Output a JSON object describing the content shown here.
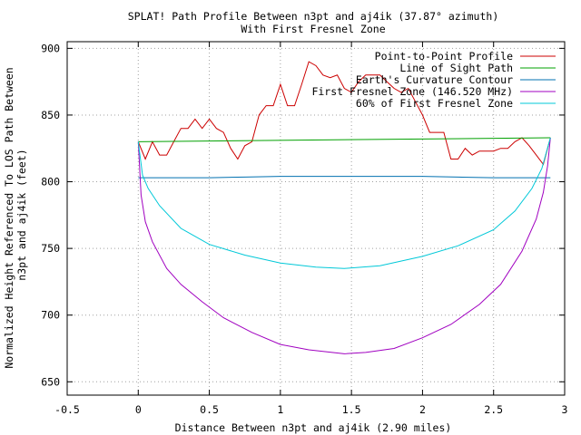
{
  "chart_data": {
    "type": "line",
    "title": "SPLAT! Path Profile Between n3pt and aj4ik (37.87° azimuth)",
    "subtitle": "With First Fresnel Zone",
    "xlabel": "Distance Between n3pt and aj4ik (2.90 miles)",
    "ylabel_lines": [
      "Normalized Height Referenced To LOS Path Between",
      "n3pt and aj4ik (feet)"
    ],
    "xlim": [
      -0.5,
      3
    ],
    "ylim": [
      640,
      905
    ],
    "x_ticks": [
      -0.5,
      0,
      0.5,
      1,
      1.5,
      2,
      2.5,
      3
    ],
    "x_tick_labels": [
      "-0.5",
      "0",
      "0.5",
      "1",
      "1.5",
      "2",
      "2.5",
      "3"
    ],
    "y_ticks": [
      650,
      700,
      750,
      800,
      850,
      900
    ],
    "y_tick_labels": [
      "650",
      "700",
      "750",
      "800",
      "850",
      "900"
    ],
    "grid": true,
    "legend_position": "top-right",
    "series": [
      {
        "name": "Point-to-Point Profile",
        "color": "#cc0000",
        "x": [
          0.0,
          0.05,
          0.1,
          0.15,
          0.2,
          0.25,
          0.3,
          0.35,
          0.4,
          0.45,
          0.5,
          0.55,
          0.6,
          0.65,
          0.7,
          0.75,
          0.8,
          0.85,
          0.9,
          0.95,
          1.0,
          1.05,
          1.1,
          1.15,
          1.2,
          1.25,
          1.3,
          1.35,
          1.4,
          1.45,
          1.5,
          1.55,
          1.6,
          1.65,
          1.7,
          1.75,
          1.8,
          1.85,
          1.9,
          1.95,
          2.0,
          2.05,
          2.1,
          2.15,
          2.2,
          2.25,
          2.3,
          2.35,
          2.4,
          2.45,
          2.5,
          2.55,
          2.6,
          2.65,
          2.7,
          2.75,
          2.8,
          2.85,
          2.9
        ],
        "y": [
          830,
          817,
          830,
          820,
          820,
          830,
          840,
          840,
          847,
          840,
          847,
          840,
          837,
          825,
          817,
          827,
          830,
          850,
          857,
          857,
          873,
          857,
          857,
          873,
          890,
          887,
          880,
          878,
          880,
          870,
          867,
          875,
          880,
          880,
          880,
          875,
          870,
          867,
          870,
          860,
          850,
          837,
          837,
          837,
          817,
          817,
          825,
          820,
          823,
          823,
          823,
          825,
          825,
          830,
          833,
          827,
          820,
          813,
          833
        ]
      },
      {
        "name": "Line of Sight Path",
        "color": "#00a000",
        "x": [
          0.0,
          2.9
        ],
        "y": [
          830,
          833
        ]
      },
      {
        "name": "Earth's Curvature Contour",
        "color": "#0070b0",
        "x": [
          0.0,
          0.25,
          0.5,
          0.75,
          1.0,
          1.25,
          1.5,
          1.75,
          2.0,
          2.25,
          2.5,
          2.75,
          2.9
        ],
        "y": [
          803,
          803,
          803,
          803.5,
          804,
          804,
          804,
          804,
          804,
          803.5,
          803,
          803,
          803
        ]
      },
      {
        "name": "First Fresnel Zone (146.520 MHz)",
        "color": "#a000c0",
        "x": [
          0.0,
          0.02,
          0.05,
          0.1,
          0.2,
          0.3,
          0.45,
          0.6,
          0.8,
          1.0,
          1.2,
          1.45,
          1.6,
          1.8,
          2.0,
          2.2,
          2.4,
          2.55,
          2.7,
          2.8,
          2.85,
          2.88,
          2.9
        ],
        "y": [
          830,
          790,
          770,
          755,
          735,
          723,
          710,
          698,
          687,
          678,
          674,
          671,
          672,
          675,
          683,
          693,
          708,
          723,
          748,
          772,
          792,
          812,
          833
        ]
      },
      {
        "name": "60% of First Fresnel Zone",
        "color": "#00c8d8",
        "x": [
          0.0,
          0.03,
          0.07,
          0.15,
          0.3,
          0.5,
          0.75,
          1.0,
          1.25,
          1.45,
          1.7,
          2.0,
          2.25,
          2.5,
          2.65,
          2.77,
          2.84,
          2.9
        ],
        "y": [
          830,
          805,
          795,
          782,
          765,
          753,
          745,
          739,
          736,
          735,
          737,
          744,
          752,
          764,
          778,
          795,
          810,
          833
        ]
      }
    ]
  }
}
